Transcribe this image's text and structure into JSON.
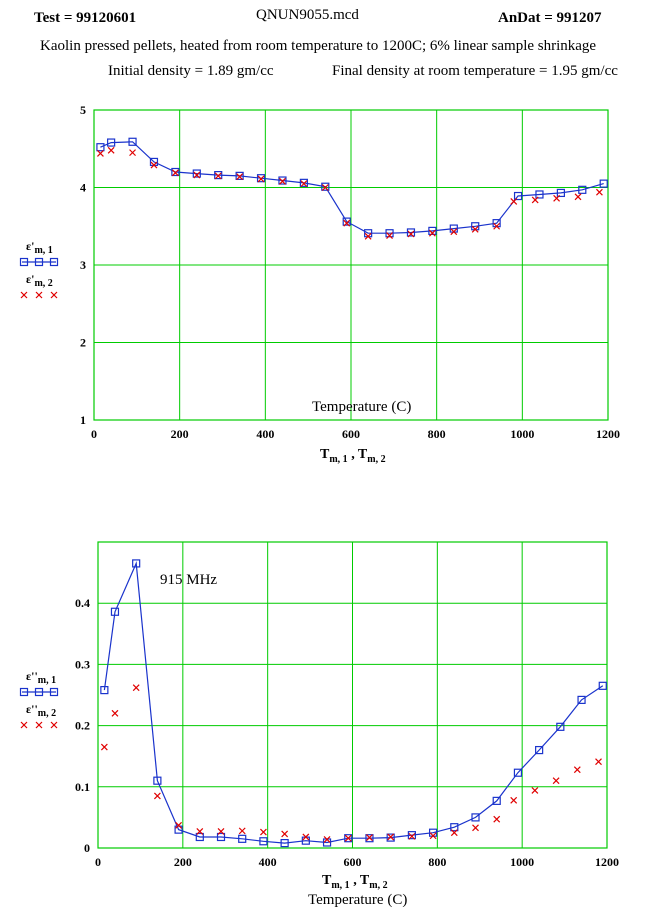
{
  "header": {
    "test_label": "Test = 99120601",
    "file_name": "QNUN9055.mcd",
    "andat_label": "AnDat = 991207",
    "description": "Kaolin  pressed pellets, heated from room temperature to 1200C; 6% linear sample shrinkage",
    "initial_density": "Initial density = 1.89 gm/cc",
    "final_density": "Final density at room temperature = 1.95 gm/cc"
  },
  "colors": {
    "grid": "#00cc00",
    "series1": "#1a33cc",
    "series2": "#e00000",
    "text": "#000000"
  },
  "chart_data": [
    {
      "type": "line",
      "annotation": "Temperature (C)",
      "xlabel": "T m, 1 , T m, 2",
      "xlim": [
        0,
        1200
      ],
      "ylim": [
        1,
        5
      ],
      "xticks": [
        0,
        200,
        400,
        600,
        800,
        1000,
        1200
      ],
      "yticks": [
        1,
        2,
        3,
        4,
        5
      ],
      "grid": true,
      "legend_position": "left",
      "series": [
        {
          "name": "ε'm, 1",
          "marker": "square",
          "line": true,
          "x": [
            15,
            40,
            90,
            140,
            190,
            240,
            290,
            340,
            390,
            440,
            490,
            540,
            590,
            640,
            690,
            740,
            790,
            840,
            890,
            940,
            990,
            1040,
            1090,
            1140,
            1190
          ],
          "y": [
            4.52,
            4.58,
            4.59,
            4.33,
            4.2,
            4.18,
            4.16,
            4.15,
            4.12,
            4.09,
            4.06,
            4.01,
            3.56,
            3.41,
            3.41,
            3.42,
            3.44,
            3.47,
            3.5,
            3.54,
            3.89,
            3.91,
            3.93,
            3.97,
            4.05
          ]
        },
        {
          "name": "ε'm, 2",
          "marker": "x",
          "line": false,
          "x": [
            15,
            40,
            90,
            140,
            190,
            240,
            290,
            340,
            390,
            440,
            490,
            540,
            590,
            640,
            690,
            740,
            790,
            840,
            890,
            940,
            980,
            1030,
            1080,
            1130,
            1180
          ],
          "y": [
            4.44,
            4.48,
            4.45,
            4.29,
            4.19,
            4.16,
            4.15,
            4.14,
            4.11,
            4.08,
            4.05,
            4.0,
            3.54,
            3.37,
            3.38,
            3.4,
            3.41,
            3.43,
            3.46,
            3.5,
            3.82,
            3.84,
            3.86,
            3.88,
            3.94
          ]
        }
      ]
    },
    {
      "type": "line",
      "annotation": "915 MHz",
      "xlabel": "T m, 1 , T m, 2",
      "xlabel2": "Temperature (C)",
      "xlim": [
        0,
        1200
      ],
      "ylim": [
        0,
        0.5
      ],
      "xticks": [
        0,
        200,
        400,
        600,
        800,
        1000,
        1200
      ],
      "yticks": [
        0,
        0.1,
        0.2,
        0.3,
        0.4
      ],
      "grid": true,
      "legend_position": "left",
      "series": [
        {
          "name": "ε''m, 1",
          "marker": "square",
          "line": true,
          "x": [
            15,
            40,
            90,
            140,
            190,
            240,
            290,
            340,
            390,
            440,
            490,
            540,
            590,
            640,
            690,
            740,
            790,
            840,
            890,
            940,
            990,
            1040,
            1090,
            1140,
            1190
          ],
          "y": [
            0.258,
            0.386,
            0.465,
            0.11,
            0.03,
            0.018,
            0.018,
            0.015,
            0.011,
            0.008,
            0.012,
            0.009,
            0.016,
            0.016,
            0.017,
            0.021,
            0.025,
            0.034,
            0.05,
            0.077,
            0.123,
            0.16,
            0.198,
            0.242,
            0.265
          ]
        },
        {
          "name": "ε''m, 2",
          "marker": "x",
          "line": false,
          "x": [
            15,
            40,
            90,
            140,
            190,
            240,
            290,
            340,
            390,
            440,
            490,
            540,
            590,
            640,
            690,
            740,
            790,
            840,
            890,
            940,
            980,
            1030,
            1080,
            1130,
            1180
          ],
          "y": [
            0.165,
            0.22,
            0.262,
            0.085,
            0.037,
            0.027,
            0.027,
            0.028,
            0.026,
            0.023,
            0.018,
            0.014,
            0.016,
            0.017,
            0.018,
            0.019,
            0.02,
            0.025,
            0.033,
            0.047,
            0.078,
            0.094,
            0.11,
            0.128,
            0.141
          ]
        }
      ]
    }
  ]
}
